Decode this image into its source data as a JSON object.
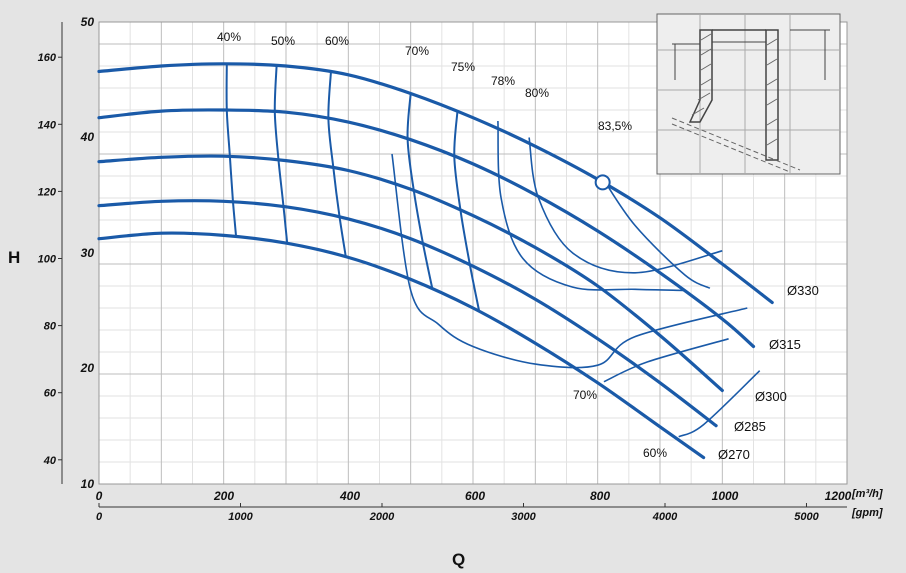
{
  "chart_data": {
    "type": "line",
    "xlabel": "Q",
    "ylabel": "H",
    "x_unit_primary": "[m³/h]",
    "x_unit_secondary": "[gpm]",
    "xlim": [
      0,
      1200
    ],
    "ylim": [
      10,
      52
    ],
    "x_ticks": [
      "0",
      "200",
      "400",
      "600",
      "800",
      "1000",
      "1200"
    ],
    "y_ticks": [
      "10",
      "20",
      "30",
      "40",
      "50"
    ],
    "gpm_ticks": [
      {
        "label": "0",
        "q": 0
      },
      {
        "label": "1000",
        "q": 227
      },
      {
        "label": "2000",
        "q": 454
      },
      {
        "label": "3000",
        "q": 681
      },
      {
        "label": "4000",
        "q": 908
      },
      {
        "label": "5000",
        "q": 1135
      }
    ],
    "ft_ticks": [
      {
        "label": "40",
        "h": 12.2
      },
      {
        "label": "60",
        "h": 18.3
      },
      {
        "label": "80",
        "h": 24.4
      },
      {
        "label": "100",
        "h": 30.5
      },
      {
        "label": "120",
        "h": 36.6
      },
      {
        "label": "140",
        "h": 42.7
      },
      {
        "label": "160",
        "h": 48.8
      }
    ],
    "series": [
      {
        "name": "Ø330",
        "points": [
          [
            0,
            47.5
          ],
          [
            100,
            48.0
          ],
          [
            200,
            48.2
          ],
          [
            300,
            48.0
          ],
          [
            400,
            47.2
          ],
          [
            500,
            45.5
          ],
          [
            600,
            43.3
          ],
          [
            700,
            40.7
          ],
          [
            800,
            37.7
          ],
          [
            900,
            34.2
          ],
          [
            1000,
            30.0
          ],
          [
            1080,
            26.5
          ]
        ]
      },
      {
        "name": "Ø315",
        "points": [
          [
            0,
            43.3
          ],
          [
            100,
            43.9
          ],
          [
            200,
            44.0
          ],
          [
            300,
            43.8
          ],
          [
            400,
            42.9
          ],
          [
            500,
            41.3
          ],
          [
            600,
            39.1
          ],
          [
            700,
            36.3
          ],
          [
            800,
            33.0
          ],
          [
            900,
            29.2
          ],
          [
            1000,
            25.0
          ],
          [
            1050,
            22.5
          ]
        ]
      },
      {
        "name": "Ø300",
        "points": [
          [
            0,
            39.3
          ],
          [
            100,
            39.7
          ],
          [
            200,
            39.8
          ],
          [
            300,
            39.4
          ],
          [
            400,
            38.5
          ],
          [
            500,
            36.8
          ],
          [
            600,
            34.4
          ],
          [
            700,
            31.5
          ],
          [
            800,
            28.0
          ],
          [
            900,
            23.5
          ],
          [
            1000,
            18.5
          ]
        ]
      },
      {
        "name": "Ø285",
        "points": [
          [
            0,
            35.3
          ],
          [
            100,
            35.7
          ],
          [
            200,
            35.7
          ],
          [
            300,
            35.2
          ],
          [
            400,
            34.1
          ],
          [
            500,
            32.3
          ],
          [
            600,
            29.8
          ],
          [
            700,
            26.8
          ],
          [
            800,
            23.2
          ],
          [
            900,
            19.2
          ],
          [
            990,
            15.3
          ]
        ]
      },
      {
        "name": "Ø270",
        "points": [
          [
            0,
            32.3
          ],
          [
            100,
            32.8
          ],
          [
            200,
            32.6
          ],
          [
            300,
            31.9
          ],
          [
            400,
            30.6
          ],
          [
            500,
            28.6
          ],
          [
            600,
            26.0
          ],
          [
            700,
            22.8
          ],
          [
            800,
            19.2
          ],
          [
            900,
            15.2
          ],
          [
            970,
            12.4
          ]
        ]
      }
    ],
    "efficiency_labels": [
      "40%",
      "50%",
      "60%",
      "70%",
      "75%",
      "78%",
      "80%",
      "83,5%",
      "70%",
      "60%"
    ]
  }
}
